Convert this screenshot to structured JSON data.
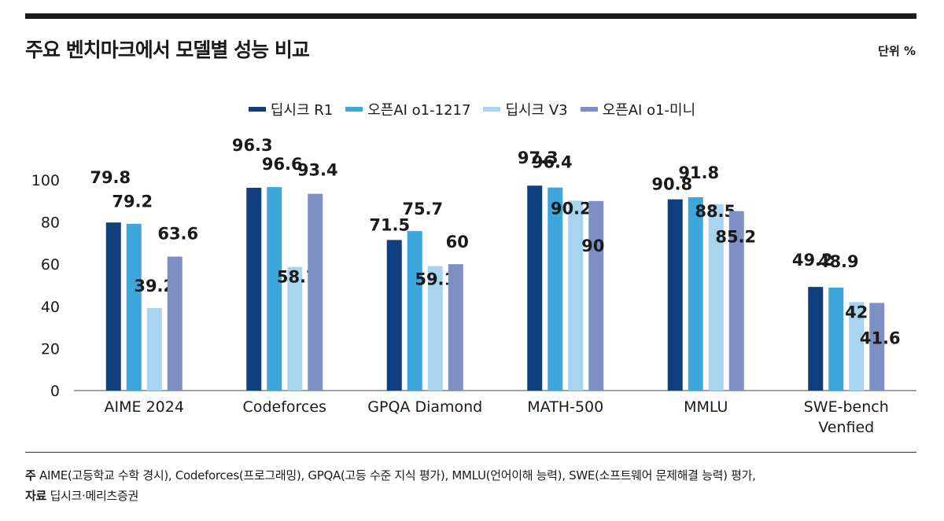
{
  "title": "주요 벤치마크에서 모델별 성능 비교",
  "unit": "단위 %",
  "legend": [
    {
      "name": "딥시크 R1",
      "color": "#0f3f7e"
    },
    {
      "name": "오픈AI o1-1217",
      "color": "#3da6db"
    },
    {
      "name": "딥시크 V3",
      "color": "#a9d4ef"
    },
    {
      "name": "오픈AI o1-미니",
      "color": "#7d8fc4"
    }
  ],
  "notes": {
    "note_label": "주",
    "note_text": "AIME(고등학교 수학 경시), Codeforces(프로그래밍), GPQA(고등 수준 지식 평가), MMLU(언어이해 능력), SWE(소프트웨어 문제해결 능력) 평가,",
    "source_label": "자료",
    "source_text": "딥시크·메리츠증권"
  },
  "chart_data": {
    "type": "bar",
    "ylim": [
      0,
      100
    ],
    "yticks": [
      0,
      20,
      40,
      60,
      80,
      100
    ],
    "categories": [
      "AIME 2024",
      "Codeforces",
      "GPQA Diamond",
      "MATH-500",
      "MMLU",
      "SWE-bench\nVenfied"
    ],
    "series": [
      {
        "name": "딥시크 R1",
        "color": "#0f3f7e",
        "values": [
          79.8,
          96.3,
          71.5,
          97.3,
          90.8,
          49.2
        ]
      },
      {
        "name": "오픈AI o1-1217",
        "color": "#3da6db",
        "values": [
          79.2,
          96.6,
          75.7,
          96.4,
          91.8,
          48.9
        ]
      },
      {
        "name": "딥시크 V3",
        "color": "#a9d4ef",
        "values": [
          39.2,
          58.7,
          59.1,
          90.2,
          88.5,
          42
        ]
      },
      {
        "name": "오픈AI o1-미니",
        "color": "#7d8fc4",
        "values": [
          63.6,
          93.4,
          60,
          90,
          85.2,
          41.6
        ]
      }
    ]
  }
}
